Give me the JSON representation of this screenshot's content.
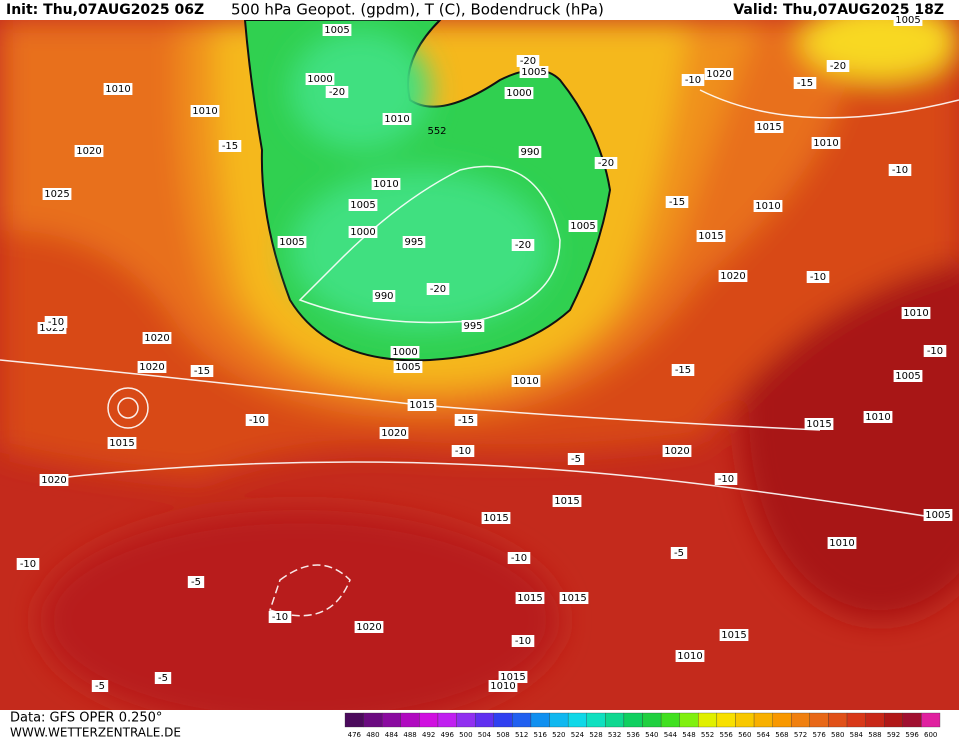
{
  "header": {
    "init": "Init: Thu,07AUG2025 06Z",
    "title": "500 hPa Geopot. (gpdm), T (C), Bodendruck (hPa)",
    "valid": "Valid: Thu,07AUG2025 18Z"
  },
  "footer": {
    "data": "Data: GFS OPER 0.250°",
    "site": "WWW.WETTERZENTRALE.DE"
  },
  "colorbar": {
    "ticks": [
      476,
      480,
      484,
      488,
      492,
      496,
      500,
      504,
      508,
      512,
      516,
      520,
      524,
      528,
      532,
      536,
      540,
      544,
      548,
      552,
      556,
      560,
      564,
      568,
      572,
      576,
      580,
      584,
      588,
      592,
      596,
      600
    ],
    "colors": [
      "#4b0a5c",
      "#6a0a80",
      "#8a0aa0",
      "#b00ac0",
      "#d010e0",
      "#c020f0",
      "#9030f0",
      "#6030f0",
      "#3040f0",
      "#2060f0",
      "#1090f0",
      "#10b8f0",
      "#10d8e8",
      "#10e0c0",
      "#10d890",
      "#10d060",
      "#20d040",
      "#40e020",
      "#80f010",
      "#e0f000",
      "#f8e000",
      "#f8c800",
      "#f8b000",
      "#f89800",
      "#f08010",
      "#e86818",
      "#e05018",
      "#d83818",
      "#c82818",
      "#b01818",
      "#a01030",
      "#e020a0"
    ]
  },
  "geopotential_label": "552",
  "pressure_labels": [
    "1010",
    "1010",
    "1020",
    "1025",
    "1025",
    "1020",
    "1020",
    "1015",
    "1020",
    "1005",
    "1000",
    "1010",
    "1010",
    "1005",
    "1000",
    "1005",
    "995",
    "990",
    "995",
    "1000",
    "1005",
    "1010",
    "1015",
    "1020",
    "1005",
    "1000",
    "990",
    "1005",
    "1020",
    "1015",
    "1010",
    "1010",
    "1015",
    "1020",
    "1010",
    "1005",
    "1010",
    "1015",
    "1020",
    "1015",
    "1015",
    "1015",
    "1015",
    "1020",
    "1015",
    "1010",
    "1015",
    "1010",
    "1010",
    "1005",
    "1005"
  ],
  "temperature_labels": [
    "-20",
    "-15",
    "-20",
    "-20",
    "-15",
    "-10",
    "-20",
    "-15",
    "-20",
    "-20",
    "-10",
    "-10",
    "-10",
    "-15",
    "-10",
    "-15",
    "-10",
    "-5",
    "-15",
    "-10",
    "-10",
    "-10",
    "-5",
    "-10",
    "-5",
    "-10",
    "-10",
    "-5",
    "-5"
  ]
}
